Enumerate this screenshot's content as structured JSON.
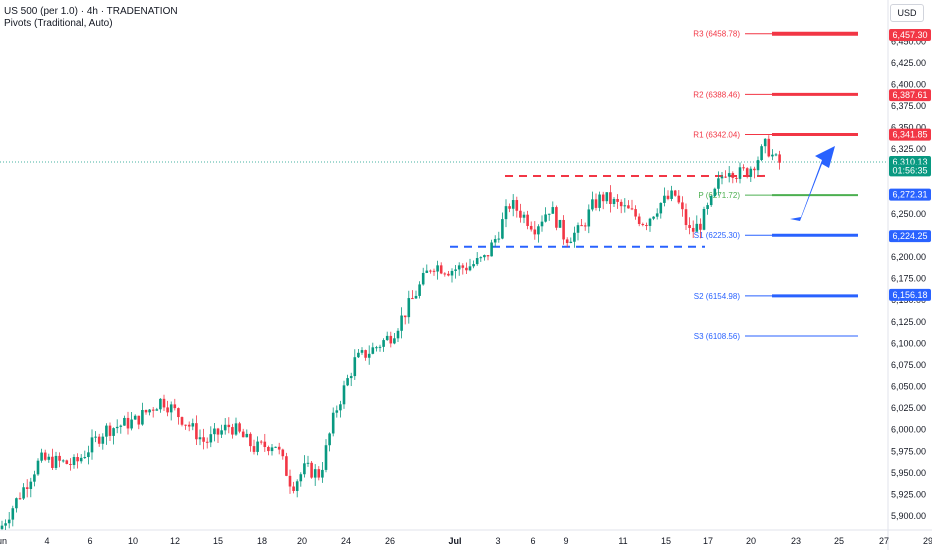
{
  "header": {
    "symbol_line": "US 500 (per 1.0) · 4h · TRADENATION",
    "indicator_line": "Pivots (Traditional, Auto)",
    "currency_label": "USD"
  },
  "colors": {
    "up": "#089981",
    "down": "#f23645",
    "resistance": "#f23645",
    "support": "#2962ff",
    "pivot": "#4caf50",
    "current_price_line": "#089981",
    "arrow": "#2962ff"
  },
  "chart_data": {
    "type": "candlestick",
    "y_range": [
      5882,
      6478
    ],
    "y_ticks": [
      5900,
      5925,
      5950,
      5975,
      6000,
      6025,
      6050,
      6075,
      6100,
      6125,
      6150,
      6175,
      6200,
      6225,
      6250,
      6275,
      6300,
      6325,
      6350,
      6375,
      6400,
      6425,
      6450
    ],
    "y_tick_labels": [
      "5,900.00",
      "5,925.00",
      "5,950.00",
      "5,975.00",
      "6,000.00",
      "6,025.00",
      "6,050.00",
      "6,075.00",
      "6,100.00",
      "6,125.00",
      "6,150.00",
      "6,175.00",
      "6,200.00",
      "6,225.00",
      "6,250.00",
      "6,275.00",
      "6,300.00",
      "6,325.00",
      "6,350.00",
      "6,375.00",
      "6,400.00",
      "6,425.00",
      "6,450.00"
    ],
    "x_tick_labels": [
      "un",
      "4",
      "6",
      "10",
      "12",
      "15",
      "18",
      "20",
      "24",
      "26",
      "Jul",
      "3",
      "6",
      "9",
      "11",
      "15",
      "17",
      "20",
      "23",
      "25",
      "27",
      "29"
    ],
    "keypoints": [
      [
        0,
        5885
      ],
      [
        10,
        5905
      ],
      [
        40,
        5965
      ],
      [
        75,
        5960
      ],
      [
        105,
        6000
      ],
      [
        135,
        6010
      ],
      [
        162,
        6035
      ],
      [
        185,
        6010
      ],
      [
        205,
        5985
      ],
      [
        230,
        6005
      ],
      [
        255,
        5978
      ],
      [
        275,
        5985
      ],
      [
        292,
        5935
      ],
      [
        305,
        5955
      ],
      [
        320,
        5948
      ],
      [
        335,
        6020
      ],
      [
        355,
        6080
      ],
      [
        375,
        6095
      ],
      [
        392,
        6110
      ],
      [
        412,
        6150
      ],
      [
        432,
        6192
      ],
      [
        450,
        6185
      ],
      [
        470,
        6190
      ],
      [
        485,
        6198
      ],
      [
        497,
        6225
      ],
      [
        510,
        6262
      ],
      [
        520,
        6252
      ],
      [
        535,
        6235
      ],
      [
        550,
        6258
      ],
      [
        565,
        6222
      ],
      [
        580,
        6230
      ],
      [
        592,
        6258
      ],
      [
        602,
        6270
      ],
      [
        615,
        6262
      ],
      [
        630,
        6252
      ],
      [
        645,
        6240
      ],
      [
        660,
        6262
      ],
      [
        675,
        6272
      ],
      [
        690,
        6228
      ],
      [
        700,
        6238
      ],
      [
        712,
        6265
      ],
      [
        720,
        6290
      ],
      [
        728,
        6305
      ],
      [
        738,
        6296
      ],
      [
        748,
        6300
      ],
      [
        758,
        6315
      ],
      [
        766,
        6330
      ],
      [
        775,
        6312
      ],
      [
        783,
        6307
      ]
    ],
    "price_axis_labels": [
      {
        "text": "6,457.30",
        "value": 6457.3,
        "color": "#f23645"
      },
      {
        "text": "6,387.61",
        "value": 6387.61,
        "color": "#f23645"
      },
      {
        "text": "6,341.85",
        "value": 6341.85,
        "color": "#f23645"
      },
      {
        "text": "6,310.13",
        "value": 6310.13,
        "color": "#089981"
      },
      {
        "text": "01:56:35",
        "value": 6300.5,
        "color": "#089981"
      },
      {
        "text": "6,272.31",
        "value": 6272.31,
        "color": "#2962ff"
      },
      {
        "text": "6,224.25",
        "value": 6224.25,
        "color": "#2962ff"
      },
      {
        "text": "6,156.18",
        "value": 6156.18,
        "color": "#2962ff"
      }
    ],
    "pivot_levels": [
      {
        "name": "R3",
        "label": "R3 (6458.78)",
        "value": 6458.78,
        "color": "#f23645"
      },
      {
        "name": "R2",
        "label": "R2 (6388.46)",
        "value": 6388.46,
        "color": "#f23645"
      },
      {
        "name": "R1",
        "label": "R1 (6342.04)",
        "value": 6342.04,
        "color": "#f23645"
      },
      {
        "name": "P",
        "label": "P (6271.72)",
        "value": 6271.72,
        "color": "#4caf50"
      },
      {
        "name": "S1",
        "label": "S1 (6225.30)",
        "value": 6225.3,
        "color": "#2962ff"
      },
      {
        "name": "S2",
        "label": "S2 (6154.98)",
        "value": 6154.98,
        "color": "#2962ff"
      },
      {
        "name": "S3",
        "label": "S3 (6108.56)",
        "value": 6108.56,
        "color": "#2962ff"
      }
    ],
    "current_price": 6310.13,
    "drawn_resistance": 6294,
    "drawn_support": 6212,
    "grid": false
  }
}
